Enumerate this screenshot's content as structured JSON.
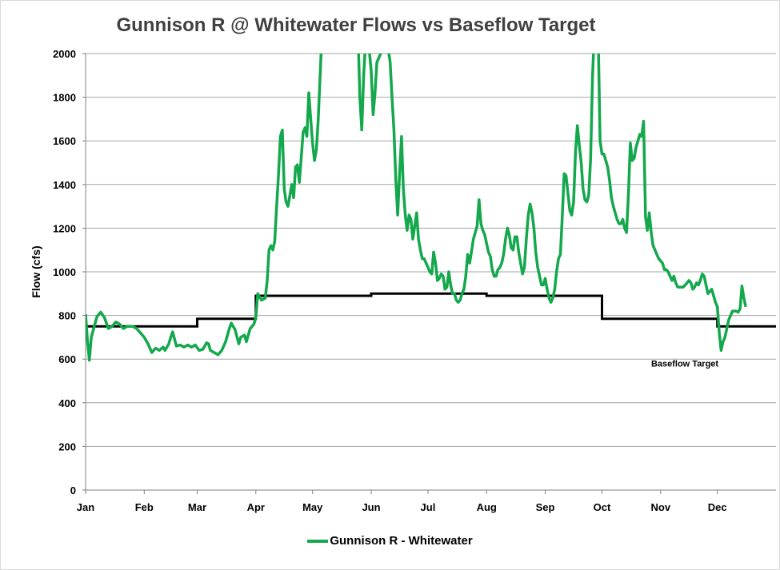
{
  "chart_data": {
    "type": "line",
    "title": "Gunnison R @ Whitewater Flows vs Baseflow Target",
    "ylabel": "Flow (cfs)",
    "xlabel": "",
    "ylim": [
      0,
      2000
    ],
    "y_ticks": [
      0,
      200,
      400,
      600,
      800,
      1000,
      1200,
      1400,
      1600,
      1800,
      2000
    ],
    "x_tick_labels": [
      "Jan",
      "Feb",
      "Mar",
      "Apr",
      "May",
      "Jun",
      "Jul",
      "Aug",
      "Sep",
      "Oct",
      "Nov",
      "Dec"
    ],
    "x_tick_days": [
      0,
      31,
      59,
      90,
      120,
      151,
      181,
      212,
      243,
      273,
      304,
      334
    ],
    "x_range_days": [
      0,
      365
    ],
    "grid": "horizontal",
    "legend_position": "bottom",
    "series": [
      {
        "name": "Gunnison R - Whitewater",
        "color": "#13a84c",
        "points": [
          [
            0,
            805
          ],
          [
            1,
            680
          ],
          [
            2,
            595
          ],
          [
            3,
            700
          ],
          [
            6,
            795
          ],
          [
            8,
            815
          ],
          [
            10,
            790
          ],
          [
            12,
            740
          ],
          [
            14,
            750
          ],
          [
            16,
            770
          ],
          [
            18,
            760
          ],
          [
            20,
            740
          ],
          [
            22,
            750
          ],
          [
            25,
            750
          ],
          [
            27,
            740
          ],
          [
            29,
            720
          ],
          [
            31,
            700
          ],
          [
            33,
            670
          ],
          [
            35,
            630
          ],
          [
            37,
            650
          ],
          [
            39,
            640
          ],
          [
            41,
            655
          ],
          [
            42,
            640
          ],
          [
            44,
            670
          ],
          [
            45,
            700
          ],
          [
            46,
            725
          ],
          [
            48,
            660
          ],
          [
            50,
            665
          ],
          [
            52,
            655
          ],
          [
            54,
            665
          ],
          [
            56,
            655
          ],
          [
            58,
            665
          ],
          [
            60,
            640
          ],
          [
            62,
            645
          ],
          [
            64,
            675
          ],
          [
            65,
            670
          ],
          [
            66,
            640
          ],
          [
            68,
            630
          ],
          [
            70,
            620
          ],
          [
            72,
            640
          ],
          [
            74,
            680
          ],
          [
            76,
            740
          ],
          [
            77,
            765
          ],
          [
            79,
            735
          ],
          [
            81,
            670
          ],
          [
            82,
            700
          ],
          [
            84,
            710
          ],
          [
            85,
            680
          ],
          [
            87,
            740
          ],
          [
            89,
            760
          ],
          [
            90,
            790
          ],
          [
            91,
            900
          ],
          [
            93,
            870
          ],
          [
            95,
            880
          ],
          [
            96,
            960
          ],
          [
            97,
            1100
          ],
          [
            98,
            1120
          ],
          [
            99,
            1100
          ],
          [
            100,
            1140
          ],
          [
            101,
            1300
          ],
          [
            102,
            1450
          ],
          [
            103,
            1620
          ],
          [
            104,
            1650
          ],
          [
            105,
            1380
          ],
          [
            106,
            1320
          ],
          [
            107,
            1300
          ],
          [
            109,
            1400
          ],
          [
            110,
            1340
          ],
          [
            111,
            1480
          ],
          [
            112,
            1490
          ],
          [
            113,
            1410
          ],
          [
            114,
            1520
          ],
          [
            115,
            1640
          ],
          [
            116,
            1660
          ],
          [
            117,
            1620
          ],
          [
            118,
            1820
          ],
          [
            119,
            1700
          ],
          [
            120,
            1590
          ],
          [
            121,
            1510
          ],
          [
            122,
            1560
          ],
          [
            123,
            1700
          ],
          [
            124,
            1900
          ],
          [
            125,
            2100
          ]
        ],
        "points_b": [
          [
            144,
            2100
          ],
          [
            145,
            1800
          ],
          [
            146,
            1650
          ],
          [
            147,
            1900
          ],
          [
            148,
            2050
          ],
          [
            149,
            2030
          ],
          [
            150,
            2010
          ],
          [
            151,
            1920
          ],
          [
            152,
            1720
          ],
          [
            153,
            1820
          ],
          [
            154,
            1960
          ],
          [
            155,
            1980
          ],
          [
            156,
            2000
          ],
          [
            157,
            2050
          ],
          [
            159,
            2060
          ],
          [
            160,
            2020
          ],
          [
            161,
            1960
          ],
          [
            162,
            1800
          ],
          [
            163,
            1650
          ],
          [
            164,
            1420
          ],
          [
            165,
            1260
          ],
          [
            166,
            1450
          ],
          [
            167,
            1620
          ],
          [
            168,
            1380
          ],
          [
            169,
            1260
          ],
          [
            170,
            1190
          ],
          [
            171,
            1260
          ],
          [
            172,
            1240
          ],
          [
            173,
            1150
          ],
          [
            174,
            1210
          ],
          [
            175,
            1270
          ],
          [
            176,
            1150
          ],
          [
            177,
            1100
          ],
          [
            178,
            1060
          ],
          [
            179,
            1060
          ],
          [
            180,
            1040
          ],
          [
            181,
            1020
          ],
          [
            182,
            1000
          ],
          [
            183,
            990
          ],
          [
            184,
            1090
          ],
          [
            185,
            1040
          ],
          [
            186,
            960
          ],
          [
            187,
            970
          ],
          [
            188,
            990
          ],
          [
            189,
            980
          ],
          [
            190,
            920
          ],
          [
            191,
            930
          ],
          [
            192,
            1000
          ],
          [
            193,
            940
          ],
          [
            194,
            900
          ],
          [
            195,
            900
          ],
          [
            196,
            870
          ],
          [
            197,
            860
          ],
          [
            198,
            870
          ],
          [
            199,
            900
          ],
          [
            200,
            920
          ],
          [
            201,
            980
          ],
          [
            202,
            1080
          ],
          [
            203,
            1040
          ],
          [
            204,
            1090
          ],
          [
            205,
            1150
          ],
          [
            206,
            1180
          ],
          [
            207,
            1210
          ],
          [
            208,
            1330
          ],
          [
            209,
            1220
          ],
          [
            210,
            1190
          ],
          [
            211,
            1170
          ],
          [
            212,
            1130
          ],
          [
            213,
            1090
          ],
          [
            214,
            1070
          ],
          [
            215,
            1010
          ],
          [
            216,
            980
          ],
          [
            217,
            980
          ],
          [
            218,
            1010
          ],
          [
            219,
            1020
          ],
          [
            220,
            1040
          ],
          [
            221,
            1080
          ],
          [
            222,
            1150
          ],
          [
            223,
            1200
          ],
          [
            224,
            1170
          ],
          [
            225,
            1110
          ],
          [
            226,
            1100
          ],
          [
            227,
            1160
          ],
          [
            228,
            1160
          ],
          [
            229,
            1090
          ],
          [
            230,
            1040
          ],
          [
            231,
            990
          ],
          [
            232,
            1020
          ],
          [
            233,
            1150
          ],
          [
            234,
            1260
          ],
          [
            235,
            1310
          ],
          [
            236,
            1270
          ],
          [
            237,
            1200
          ],
          [
            238,
            1090
          ],
          [
            239,
            1020
          ],
          [
            240,
            980
          ],
          [
            241,
            940
          ],
          [
            242,
            940
          ],
          [
            243,
            970
          ],
          [
            244,
            920
          ],
          [
            245,
            880
          ],
          [
            246,
            860
          ],
          [
            247,
            880
          ],
          [
            248,
            920
          ],
          [
            249,
            1000
          ],
          [
            250,
            1060
          ],
          [
            251,
            1080
          ],
          [
            252,
            1250
          ],
          [
            253,
            1450
          ],
          [
            254,
            1440
          ],
          [
            255,
            1360
          ],
          [
            256,
            1280
          ],
          [
            257,
            1260
          ],
          [
            258,
            1320
          ],
          [
            259,
            1550
          ],
          [
            260,
            1670
          ],
          [
            261,
            1580
          ],
          [
            262,
            1500
          ],
          [
            263,
            1380
          ],
          [
            264,
            1330
          ],
          [
            265,
            1320
          ],
          [
            266,
            1350
          ],
          [
            267,
            1520
          ],
          [
            268,
            1900
          ],
          [
            269,
            2100
          ]
        ],
        "points_c": [
          [
            271,
            2100
          ],
          [
            272,
            1600
          ],
          [
            273,
            1540
          ],
          [
            274,
            1540
          ],
          [
            275,
            1510
          ],
          [
            276,
            1480
          ],
          [
            277,
            1420
          ],
          [
            278,
            1340
          ],
          [
            279,
            1300
          ],
          [
            280,
            1270
          ],
          [
            281,
            1240
          ],
          [
            282,
            1220
          ],
          [
            283,
            1220
          ],
          [
            284,
            1240
          ],
          [
            285,
            1200
          ],
          [
            286,
            1180
          ],
          [
            287,
            1360
          ],
          [
            288,
            1590
          ],
          [
            289,
            1510
          ],
          [
            290,
            1520
          ],
          [
            291,
            1570
          ],
          [
            292,
            1600
          ],
          [
            293,
            1630
          ],
          [
            294,
            1620
          ],
          [
            295,
            1690
          ],
          [
            296,
            1250
          ],
          [
            297,
            1190
          ],
          [
            298,
            1270
          ],
          [
            299,
            1180
          ],
          [
            300,
            1120
          ],
          [
            301,
            1100
          ],
          [
            302,
            1080
          ],
          [
            303,
            1060
          ],
          [
            304,
            1050
          ],
          [
            305,
            1040
          ],
          [
            306,
            1010
          ],
          [
            307,
            1010
          ],
          [
            308,
            1000
          ],
          [
            309,
            980
          ],
          [
            310,
            960
          ],
          [
            311,
            980
          ],
          [
            312,
            950
          ],
          [
            313,
            930
          ],
          [
            314,
            930
          ],
          [
            315,
            930
          ],
          [
            316,
            930
          ],
          [
            317,
            940
          ],
          [
            318,
            950
          ],
          [
            319,
            960
          ],
          [
            320,
            950
          ],
          [
            321,
            920
          ],
          [
            322,
            930
          ],
          [
            323,
            950
          ],
          [
            324,
            940
          ],
          [
            325,
            960
          ],
          [
            326,
            990
          ],
          [
            327,
            980
          ],
          [
            328,
            940
          ],
          [
            329,
            900
          ],
          [
            330,
            910
          ],
          [
            331,
            920
          ],
          [
            332,
            890
          ],
          [
            333,
            860
          ],
          [
            334,
            840
          ],
          [
            335,
            720
          ],
          [
            336,
            640
          ],
          [
            337,
            680
          ],
          [
            338,
            700
          ],
          [
            339,
            740
          ],
          [
            340,
            780
          ],
          [
            341,
            800
          ],
          [
            342,
            820
          ],
          [
            343,
            820
          ],
          [
            344,
            820
          ],
          [
            345,
            815
          ],
          [
            346,
            830
          ],
          [
            347,
            935
          ],
          [
            348,
            880
          ],
          [
            349,
            840
          ]
        ]
      },
      {
        "name": "Baseflow Target",
        "color": "#000000",
        "step": [
          [
            0,
            750
          ],
          [
            59,
            750
          ],
          [
            59,
            785
          ],
          [
            90,
            785
          ],
          [
            90,
            890
          ],
          [
            151,
            890
          ],
          [
            151,
            900
          ],
          [
            212,
            900
          ],
          [
            212,
            890
          ],
          [
            273,
            890
          ],
          [
            273,
            785
          ],
          [
            334,
            785
          ],
          [
            334,
            750
          ],
          [
            365,
            750
          ]
        ]
      }
    ],
    "annotations": [
      {
        "text": "Baseflow Target",
        "x_day": 299,
        "y": 610
      }
    ]
  },
  "legend": {
    "label": "Gunnison R - Whitewater"
  }
}
